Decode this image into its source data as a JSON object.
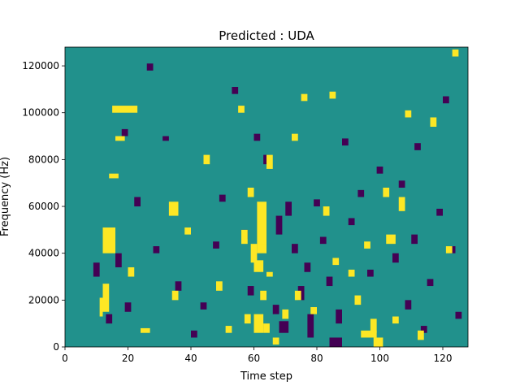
{
  "chart_data": {
    "type": "heatmap",
    "title": "Predicted : UDA",
    "xlabel": "Time step",
    "ylabel": "Frequency (Hz)",
    "xlim": [
      0,
      128
    ],
    "ylim": [
      0,
      128000
    ],
    "xticks": [
      0,
      20,
      40,
      60,
      80,
      100,
      120
    ],
    "yticks": [
      0,
      20000,
      40000,
      60000,
      80000,
      100000,
      120000
    ],
    "n_time_steps": 128,
    "n_freq_bins": 128,
    "grid": false,
    "colormap": "viridis",
    "levels": {
      "background": "#21918c",
      "high": "#fde725",
      "low": "#440154"
    },
    "cells_note_value_scale": "0 = background, 1 = high (yellow), -1 = low (purple)",
    "high_cells": [
      [
        11,
        13,
        1,
        8
      ],
      [
        12,
        15,
        2,
        12
      ],
      [
        12,
        40,
        4,
        11
      ],
      [
        15,
        100,
        8,
        3
      ],
      [
        16,
        88,
        3,
        2
      ],
      [
        14,
        72,
        3,
        2
      ],
      [
        20,
        30,
        2,
        4
      ],
      [
        24,
        6,
        3,
        2
      ],
      [
        33,
        56,
        3,
        6
      ],
      [
        34,
        20,
        2,
        4
      ],
      [
        38,
        48,
        2,
        3
      ],
      [
        44,
        78,
        2,
        4
      ],
      [
        48,
        24,
        2,
        4
      ],
      [
        51,
        6,
        2,
        3
      ],
      [
        55,
        100,
        2,
        3
      ],
      [
        56,
        44,
        2,
        6
      ],
      [
        57,
        10,
        2,
        4
      ],
      [
        58,
        64,
        2,
        4
      ],
      [
        59,
        36,
        2,
        8
      ],
      [
        60,
        6,
        3,
        8
      ],
      [
        60,
        32,
        3,
        5
      ],
      [
        61,
        40,
        3,
        22
      ],
      [
        62,
        42,
        2,
        2
      ],
      [
        62,
        20,
        2,
        4
      ],
      [
        63,
        6,
        2,
        4
      ],
      [
        64,
        30,
        2,
        2
      ],
      [
        64,
        76,
        2,
        6
      ],
      [
        66,
        1,
        2,
        3
      ],
      [
        69,
        12,
        2,
        4
      ],
      [
        72,
        88,
        2,
        3
      ],
      [
        73,
        20,
        2,
        4
      ],
      [
        75,
        105,
        2,
        3
      ],
      [
        78,
        14,
        2,
        3
      ],
      [
        82,
        56,
        2,
        4
      ],
      [
        84,
        106,
        2,
        3
      ],
      [
        85,
        35,
        2,
        3
      ],
      [
        90,
        30,
        2,
        3
      ],
      [
        92,
        18,
        2,
        4
      ],
      [
        94,
        4,
        5,
        3
      ],
      [
        95,
        42,
        2,
        3
      ],
      [
        97,
        6,
        2,
        6
      ],
      [
        98,
        0,
        3,
        4
      ],
      [
        101,
        64,
        2,
        4
      ],
      [
        102,
        44,
        3,
        4
      ],
      [
        104,
        10,
        2,
        3
      ],
      [
        106,
        58,
        2,
        6
      ],
      [
        108,
        98,
        2,
        3
      ],
      [
        112,
        3,
        2,
        4
      ],
      [
        116,
        94,
        2,
        4
      ],
      [
        121,
        40,
        2,
        3
      ],
      [
        123,
        124,
        2,
        3
      ]
    ],
    "low_cells": [
      [
        9,
        30,
        2,
        6
      ],
      [
        13,
        10,
        2,
        4
      ],
      [
        16,
        34,
        2,
        6
      ],
      [
        18,
        90,
        2,
        3
      ],
      [
        19,
        15,
        2,
        4
      ],
      [
        22,
        60,
        2,
        4
      ],
      [
        26,
        118,
        2,
        3
      ],
      [
        28,
        40,
        2,
        3
      ],
      [
        31,
        88,
        2,
        2
      ],
      [
        35,
        24,
        2,
        4
      ],
      [
        40,
        4,
        2,
        3
      ],
      [
        43,
        16,
        2,
        3
      ],
      [
        47,
        42,
        2,
        3
      ],
      [
        49,
        62,
        2,
        3
      ],
      [
        53,
        108,
        2,
        3
      ],
      [
        56,
        46,
        2,
        4
      ],
      [
        58,
        22,
        2,
        4
      ],
      [
        60,
        88,
        2,
        3
      ],
      [
        63,
        78,
        2,
        4
      ],
      [
        66,
        14,
        2,
        4
      ],
      [
        67,
        48,
        2,
        8
      ],
      [
        68,
        6,
        3,
        5
      ],
      [
        70,
        56,
        2,
        6
      ],
      [
        72,
        40,
        2,
        4
      ],
      [
        74,
        20,
        2,
        6
      ],
      [
        76,
        32,
        2,
        4
      ],
      [
        77,
        4,
        2,
        10
      ],
      [
        79,
        60,
        2,
        3
      ],
      [
        81,
        44,
        2,
        3
      ],
      [
        83,
        26,
        2,
        4
      ],
      [
        84,
        0,
        4,
        4
      ],
      [
        86,
        10,
        2,
        6
      ],
      [
        88,
        86,
        2,
        3
      ],
      [
        90,
        52,
        2,
        3
      ],
      [
        93,
        64,
        2,
        3
      ],
      [
        96,
        30,
        2,
        3
      ],
      [
        99,
        74,
        2,
        3
      ],
      [
        104,
        36,
        2,
        4
      ],
      [
        106,
        68,
        2,
        3
      ],
      [
        108,
        16,
        2,
        4
      ],
      [
        110,
        44,
        2,
        4
      ],
      [
        111,
        84,
        2,
        3
      ],
      [
        113,
        6,
        2,
        3
      ],
      [
        115,
        26,
        2,
        3
      ],
      [
        118,
        56,
        2,
        3
      ],
      [
        120,
        104,
        2,
        3
      ],
      [
        122,
        40,
        2,
        3
      ],
      [
        124,
        12,
        2,
        3
      ]
    ]
  }
}
